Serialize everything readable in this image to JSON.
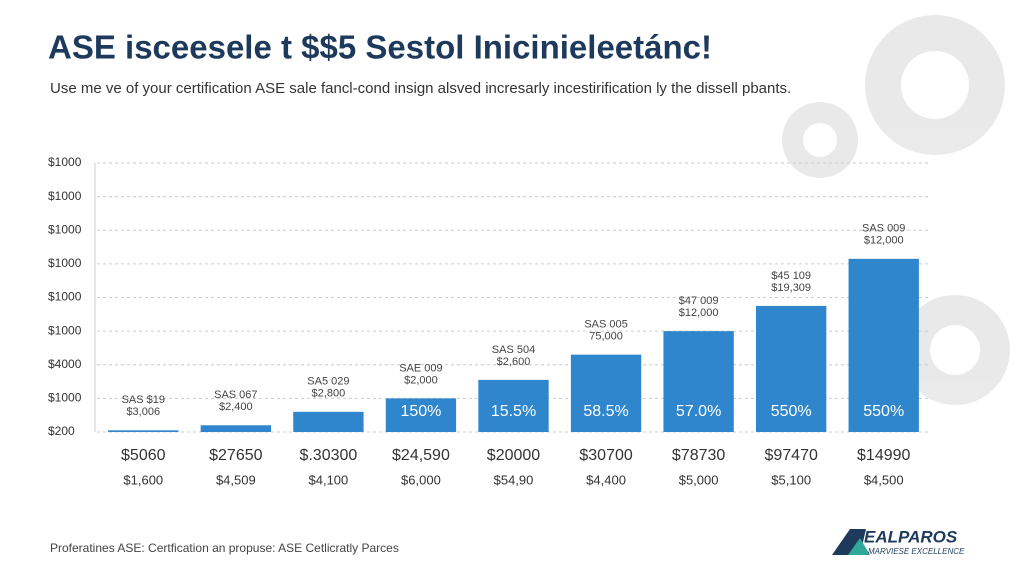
{
  "chart_data": {
    "type": "bar",
    "title": "ASE isceesele t $$5 Sestol Inicinieleetánc!",
    "subtitle": "Use me ve of your certification ASE sale fancl-cond insign alsved incresarly incestirification ly the dissell pbants.",
    "categories": [
      "$5060",
      "$27650",
      "$.30300",
      "$24,590",
      "$20000",
      "$30700",
      "$78730",
      "$97470",
      "$14990"
    ],
    "sublabels": [
      "$1,600",
      "$4,509",
      "$4,100",
      "$6,000",
      "$54,90",
      "$4,400",
      "$5,000",
      "$5,100",
      "$4,500"
    ],
    "values": [
      0.05,
      0.2,
      0.6,
      1.0,
      1.55,
      2.3,
      3.0,
      3.75,
      5.15
    ],
    "bar_labels": [
      null,
      null,
      null,
      "150%",
      "15.5%",
      "58.5%",
      "57.0%",
      "550%",
      "550%"
    ],
    "annotations": [
      [
        "SAS $19",
        "$3,006"
      ],
      [
        "SAS 067",
        "$2,400"
      ],
      [
        "SA5 029",
        "$2,800"
      ],
      [
        "SAE 009",
        "$2,000"
      ],
      [
        "SAS 504",
        "$2,600"
      ],
      [
        "SAS 005",
        "75,000"
      ],
      [
        "$47 009",
        "$12,000"
      ],
      [
        "$45 109",
        "$19,309"
      ],
      [
        "SAS 009",
        "$12,000"
      ]
    ],
    "color": "#2f86cc",
    "ylim": [
      0,
      8
    ],
    "yticks": [
      {
        "value": 0,
        "label": "$200"
      },
      {
        "value": 1,
        "label": "$1000"
      },
      {
        "value": 2,
        "label": "$4000"
      },
      {
        "value": 3,
        "label": "$1000"
      },
      {
        "value": 4,
        "label": "$1000"
      },
      {
        "value": 5,
        "label": "$1000"
      },
      {
        "value": 6,
        "label": "$1000"
      },
      {
        "value": 7,
        "label": "$1000"
      },
      {
        "value": 8,
        "label": "$1000"
      }
    ],
    "grid": true
  },
  "footer": "Proferatines ASE: Certfication an propuse: ASE Cetlicratly Parces",
  "logo": {
    "name": "EALPAROS",
    "tagline": "MARVIESE EXCELLENCE"
  }
}
